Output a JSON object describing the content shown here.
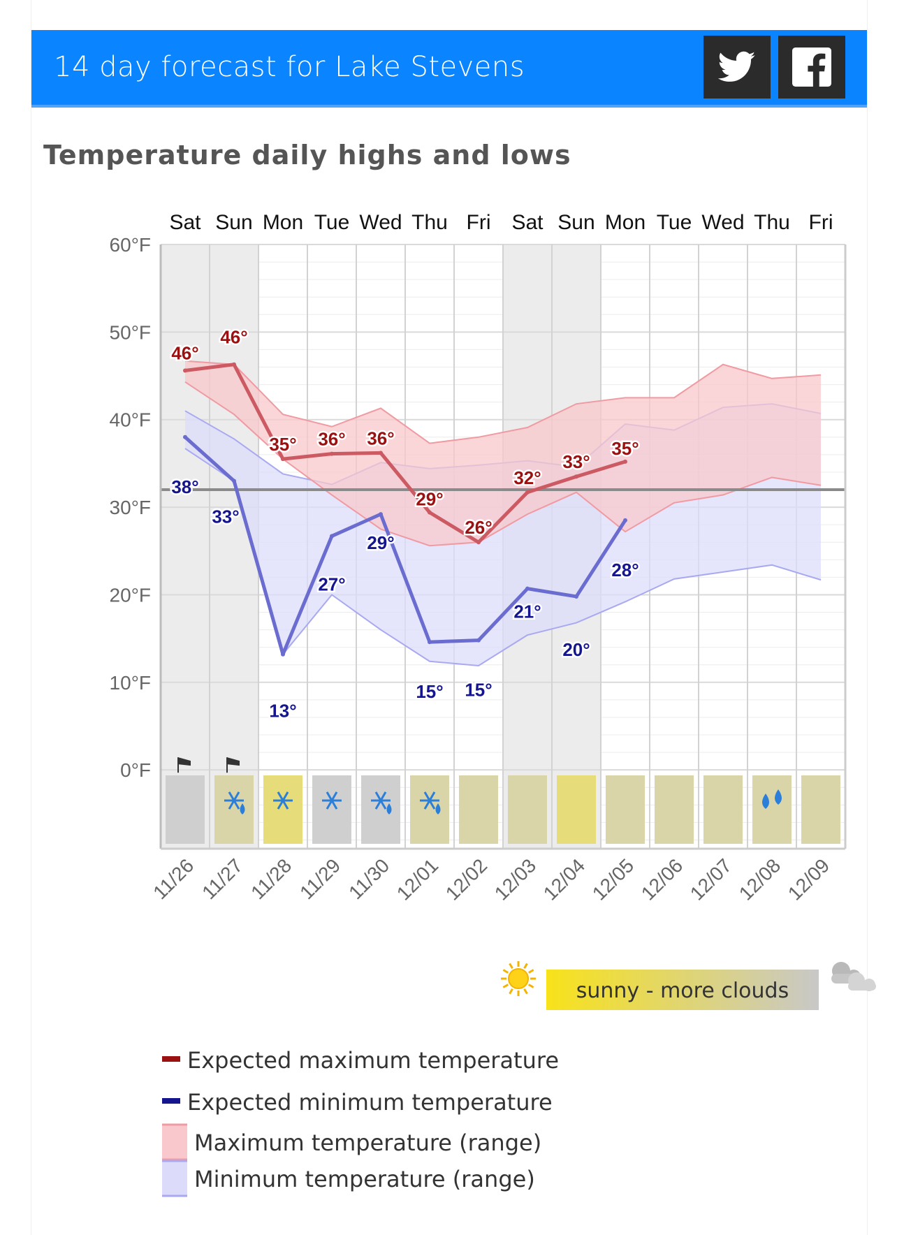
{
  "header": {
    "title": "14 day forecast for Lake Stevens",
    "color": "#0a84ff"
  },
  "share": {
    "twitter_icon": "twitter-icon",
    "facebook_icon": "facebook-icon"
  },
  "section_title": "Temperature daily highs and lows",
  "chart_data": {
    "type": "line",
    "title": "Temperature daily highs and lows",
    "days": [
      "Sat",
      "Sun",
      "Mon",
      "Tue",
      "Wed",
      "Thu",
      "Fri",
      "Sat",
      "Sun",
      "Mon",
      "Tue",
      "Wed",
      "Thu",
      "Fri"
    ],
    "dates": [
      "11/26",
      "11/27",
      "11/28",
      "11/29",
      "11/30",
      "12/01",
      "12/02",
      "12/03",
      "12/04",
      "12/05",
      "12/06",
      "12/07",
      "12/08",
      "12/09"
    ],
    "weekend_shaded": [
      true,
      true,
      false,
      false,
      false,
      false,
      false,
      true,
      true,
      false,
      false,
      false,
      false,
      false
    ],
    "ylim": [
      -9,
      60
    ],
    "y_ticks": [
      {
        "value": 60,
        "label": "60°F"
      },
      {
        "value": 50,
        "label": "50°F"
      },
      {
        "value": 40,
        "label": "40°F"
      },
      {
        "value": 30,
        "label": "30°F"
      },
      {
        "value": 20,
        "label": "20°F"
      },
      {
        "value": 10,
        "label": "10°F"
      },
      {
        "value": 0,
        "label": "0°F"
      }
    ],
    "freezing_line": 32,
    "series": [
      {
        "name": "Expected maximum temperature",
        "color": "#cc5a62",
        "values": [
          45.6,
          46.3,
          35.5,
          36.1,
          36.2,
          29.4,
          26.0,
          31.7,
          33.5,
          35.2,
          null,
          null,
          null,
          null
        ],
        "labels": [
          "46°",
          "46°",
          "35°",
          "36°",
          "36°",
          "29°",
          "26°",
          "32°",
          "33°",
          "35°",
          "",
          "",
          "",
          ""
        ],
        "label_color": "#9b1010"
      },
      {
        "name": "Expected minimum temperature",
        "color": "#6a6ccf",
        "values": [
          38.0,
          33.0,
          13.2,
          26.7,
          29.2,
          14.6,
          14.8,
          20.7,
          19.8,
          28.5,
          null,
          null,
          null,
          null
        ],
        "labels": [
          "38°",
          "33°",
          "13°",
          "27°",
          "29°",
          "15°",
          "15°",
          "21°",
          "20°",
          "28°",
          "",
          "",
          "",
          ""
        ],
        "label_color": "#15168f"
      }
    ],
    "max_range": {
      "name": "Maximum temperature (range)",
      "upper": [
        46.7,
        46.3,
        40.6,
        39.2,
        41.3,
        37.3,
        38.0,
        39.1,
        41.8,
        42.5,
        42.5,
        46.3,
        44.7,
        45.1
      ],
      "lower": [
        44.3,
        40.6,
        35.5,
        31.4,
        27.5,
        25.6,
        26.0,
        29.2,
        31.7,
        27.2,
        30.5,
        31.4,
        33.4,
        32.5
      ],
      "fill": "#f8c8cc",
      "line": "#f09aa2"
    },
    "min_range": {
      "name": "Minimum temperature (range)",
      "upper": [
        41.0,
        37.8,
        33.8,
        32.6,
        35.1,
        34.4,
        34.8,
        35.3,
        34.6,
        39.5,
        38.8,
        41.4,
        41.8,
        40.7
      ],
      "lower": [
        36.7,
        33.0,
        13.2,
        20.0,
        16.0,
        12.4,
        11.9,
        15.4,
        16.8,
        19.2,
        21.8,
        22.6,
        23.4,
        21.7
      ],
      "fill": "#dcdcfa",
      "line": "#a9a9f2"
    },
    "wind_days": [
      0,
      1
    ],
    "weather": [
      {
        "bg": "#cfcfcf",
        "icon": "none"
      },
      {
        "bg": "#d9d5a8",
        "icon": "snow-rain-icon"
      },
      {
        "bg": "#e6dc7a",
        "icon": "snow-icon"
      },
      {
        "bg": "#cfcfcf",
        "icon": "snow-icon"
      },
      {
        "bg": "#cfcfcf",
        "icon": "snow-rain-icon"
      },
      {
        "bg": "#d9d5a8",
        "icon": "snow-rain-icon"
      },
      {
        "bg": "#d9d5a8",
        "icon": "none"
      },
      {
        "bg": "#d9d5a8",
        "icon": "none"
      },
      {
        "bg": "#e6dc7a",
        "icon": "none"
      },
      {
        "bg": "#d9d5a8",
        "icon": "none"
      },
      {
        "bg": "#d9d5a8",
        "icon": "none"
      },
      {
        "bg": "#d9d5a8",
        "icon": "none"
      },
      {
        "bg": "#d9d5a8",
        "icon": "rain-icon"
      },
      {
        "bg": "#d9d5a8",
        "icon": "none"
      }
    ]
  },
  "sun_cloud_legend": {
    "label": "sunny - more clouds",
    "sun_icon": "sun-icon",
    "cloud_icon": "cloud-icon"
  },
  "legend": [
    {
      "label": "Expected maximum temperature",
      "kind": "line",
      "color": "#9b1010"
    },
    {
      "label": "Expected minimum temperature",
      "kind": "line",
      "color": "#15168f"
    },
    {
      "label": "Maximum temperature (range)",
      "kind": "range",
      "color": "#f8c8cc",
      "line": "#f09aa2"
    },
    {
      "label": "Minimum temperature (range)",
      "kind": "range",
      "color": "#dcdcfa",
      "line": "#a9a9f2"
    }
  ]
}
